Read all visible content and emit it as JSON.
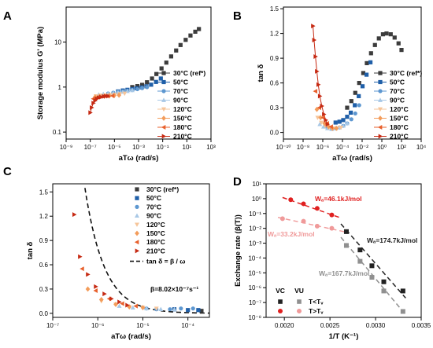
{
  "figure": {
    "legend_temps": [
      "30°C (ref*)",
      "50°C",
      "70°C",
      "90°C",
      "120°C",
      "150°C",
      "180°C",
      "210°C"
    ],
    "series_colors": [
      "#3c3c3c",
      "#1f5fa8",
      "#5d97d0",
      "#a8c8e6",
      "#f6c59a",
      "#f39c5a",
      "#e8602c",
      "#c62a13"
    ]
  },
  "chart_data": [
    {
      "panel": "A",
      "type": "scatter",
      "xlabel": "aTω (rad/s)",
      "ylabel": "Storage modulus G' (MPa)",
      "xscale": "log",
      "yscale": "log",
      "xlim": [
        1e-09,
        1000.0
      ],
      "ylim": [
        0.07,
        60
      ],
      "xticks": [
        "10⁻⁹",
        "10⁻⁷",
        "10⁻⁵",
        "10⁻³",
        "10⁻¹",
        "10¹",
        "10³"
      ],
      "yticks": [
        "0.1",
        "1",
        "10"
      ],
      "series": [
        {
          "name": "30°C (ref*)",
          "marker": "square",
          "x": [
            0.0003,
            0.0008,
            0.002,
            0.005,
            0.013,
            0.03,
            0.08,
            0.2,
            0.5,
            1.3,
            3,
            8,
            20,
            50,
            100
          ],
          "y": [
            1.0,
            1.05,
            1.12,
            1.28,
            1.55,
            1.95,
            2.6,
            3.5,
            4.8,
            6.5,
            8.6,
            11.2,
            14.0,
            17.0,
            19.5
          ]
        },
        {
          "name": "50°C",
          "marker": "square",
          "x": [
            2e-05,
            5e-05,
            0.00012,
            0.0003,
            0.0007,
            0.0018,
            0.0045,
            0.011,
            0.028,
            0.07
          ],
          "y": [
            0.8,
            0.84,
            0.87,
            0.9,
            0.94,
            0.98,
            1.04,
            1.13,
            1.3,
            1.55
          ]
        },
        {
          "name": "70°C",
          "marker": "circle",
          "x": [
            3e-06,
            8e-06,
            2e-05,
            5e-05,
            0.00012,
            0.0003,
            0.0008,
            0.002,
            0.005
          ],
          "y": [
            0.72,
            0.75,
            0.78,
            0.8,
            0.83,
            0.86,
            0.9,
            0.95,
            1.0
          ]
        },
        {
          "name": "90°C",
          "marker": "triangle-up",
          "x": [
            5e-07,
            1.2e-06,
            3e-06,
            8e-06,
            2e-05,
            5e-05,
            0.00012,
            0.0003
          ],
          "y": [
            0.68,
            0.7,
            0.72,
            0.74,
            0.76,
            0.78,
            0.81,
            0.85
          ]
        },
        {
          "name": "120°C",
          "marker": "triangle-down",
          "x": [
            3e-07,
            7e-07,
            1.8e-06,
            4.5e-06,
            1.1e-05,
            2.8e-05,
            7e-05
          ],
          "y": [
            0.63,
            0.65,
            0.66,
            0.67,
            0.68,
            0.7,
            0.72
          ]
        },
        {
          "name": "150°C",
          "marker": "diamond",
          "x": [
            2.5e-07,
            6e-07,
            1.5e-06,
            3.8e-06,
            9.5e-06,
            2.4e-05
          ],
          "y": [
            0.6,
            0.62,
            0.63,
            0.64,
            0.65,
            0.66
          ]
        },
        {
          "name": "180°C",
          "marker": "triangle-left",
          "x": [
            1.8e-07,
            4.5e-07,
            1.1e-06,
            2.8e-06,
            7e-06
          ],
          "y": [
            0.55,
            0.6,
            0.62,
            0.63,
            0.64
          ]
        },
        {
          "name": "210°C",
          "marker": "triangle-right",
          "x": [
            1e-07,
            1.3e-07,
            1.8e-07,
            2.5e-07,
            3.5e-07,
            5e-07,
            8e-07,
            1.3e-06,
            2e-06,
            3e-06
          ],
          "y": [
            0.27,
            0.35,
            0.44,
            0.5,
            0.55,
            0.58,
            0.6,
            0.62,
            0.63,
            0.63
          ]
        }
      ]
    },
    {
      "panel": "B",
      "type": "scatter",
      "xlabel": "aTω (rad/s)",
      "ylabel": "tan δ",
      "xscale": "log",
      "yscale": "linear",
      "xlim": [
        1e-10,
        10000.0
      ],
      "ylim": [
        -0.08,
        1.52
      ],
      "xticks": [
        "10⁻¹⁰",
        "10⁻⁸",
        "10⁻⁶",
        "10⁻⁴",
        "10⁻²",
        "10⁰",
        "10²",
        "10⁴"
      ],
      "yticks": [
        "0.0",
        "0.3",
        "0.6",
        "0.9",
        "1.2",
        "1.5"
      ],
      "series": [
        {
          "name": "30°C (ref*)",
          "marker": "square",
          "x": [
            0.0003,
            0.0008,
            0.002,
            0.005,
            0.013,
            0.03,
            0.08,
            0.2,
            0.5,
            1.3,
            3,
            8,
            20,
            50,
            100
          ],
          "y": [
            0.3,
            0.38,
            0.48,
            0.6,
            0.72,
            0.84,
            0.96,
            1.06,
            1.14,
            1.19,
            1.2,
            1.19,
            1.15,
            1.08,
            1.0
          ]
        },
        {
          "name": "50°C",
          "marker": "square",
          "x": [
            2e-05,
            5e-05,
            0.00012,
            0.0003,
            0.0007,
            0.0018,
            0.0045,
            0.011,
            0.028,
            0.07
          ],
          "y": [
            0.12,
            0.13,
            0.15,
            0.19,
            0.24,
            0.33,
            0.44,
            0.56,
            0.7,
            0.85
          ]
        },
        {
          "name": "70°C",
          "marker": "circle",
          "x": [
            3e-06,
            8e-06,
            2e-05,
            5e-05,
            0.00012,
            0.0003,
            0.0008,
            0.002,
            0.005
          ],
          "y": [
            0.06,
            0.05,
            0.05,
            0.06,
            0.08,
            0.11,
            0.16,
            0.23,
            0.33
          ]
        },
        {
          "name": "90°C",
          "marker": "triangle-up",
          "x": [
            5e-07,
            1.2e-06,
            3e-06,
            8e-06,
            2e-05,
            5e-05,
            0.00012,
            0.0003
          ],
          "y": [
            0.1,
            0.07,
            0.05,
            0.04,
            0.05,
            0.06,
            0.08,
            0.11
          ]
        },
        {
          "name": "120°C",
          "marker": "triangle-down",
          "x": [
            3e-07,
            7e-07,
            1.8e-06,
            4.5e-06,
            1.1e-05,
            2.8e-05,
            7e-05
          ],
          "y": [
            0.18,
            0.12,
            0.08,
            0.06,
            0.05,
            0.05,
            0.06
          ]
        },
        {
          "name": "150°C",
          "marker": "diamond",
          "x": [
            2.5e-07,
            6e-07,
            1.5e-06,
            3.8e-06,
            9.5e-06,
            2.4e-05
          ],
          "y": [
            0.28,
            0.18,
            0.11,
            0.07,
            0.05,
            0.05
          ]
        },
        {
          "name": "180°C",
          "marker": "triangle-left",
          "x": [
            1.8e-07,
            4.5e-07,
            1.1e-06,
            2.8e-06,
            7e-06
          ],
          "y": [
            0.5,
            0.3,
            0.18,
            0.11,
            0.07
          ]
        },
        {
          "name": "210°C",
          "marker": "triangle-right",
          "x": [
            1e-07,
            1.3e-07,
            1.8e-07,
            2.5e-07,
            3.5e-07,
            5e-07,
            8e-07,
            1.3e-06,
            2e-06,
            3e-06
          ],
          "y": [
            1.29,
            1.12,
            0.92,
            0.74,
            0.58,
            0.44,
            0.32,
            0.22,
            0.15,
            0.1
          ]
        }
      ]
    },
    {
      "panel": "C",
      "type": "scatter",
      "xlabel": "aTω (rad/s)",
      "ylabel": "tan δ",
      "xscale": "log",
      "yscale": "linear",
      "xlim": [
        1e-07,
        0.0003
      ],
      "ylim": [
        -0.05,
        1.6
      ],
      "xticks": [
        "10⁻⁷",
        "10⁻⁶",
        "10⁻⁵",
        "10⁻⁴"
      ],
      "yticks": [
        "0.0",
        "0.3",
        "0.6",
        "0.9",
        "1.2",
        "1.5"
      ],
      "fit": {
        "label": "tan δ = β / ω",
        "beta": 8.02e-07
      },
      "annotation": "β=8.02×10⁻⁷s⁻¹",
      "series": [
        {
          "name": "30°C (ref*)",
          "marker": "square",
          "x": [
            0.0002
          ],
          "y": [
            0.03
          ]
        },
        {
          "name": "50°C",
          "marker": "square",
          "x": [
            5e-05,
            0.0001,
            0.00017
          ],
          "y": [
            0.05,
            0.04,
            0.04
          ]
        },
        {
          "name": "70°C",
          "marker": "circle",
          "x": [
            1.2e-05,
            2e-05,
            4e-05,
            7e-05,
            0.00013
          ],
          "y": [
            0.06,
            0.05,
            0.05,
            0.06,
            0.06
          ]
        },
        {
          "name": "90°C",
          "marker": "triangle-up",
          "x": [
            3e-06,
            6e-06,
            1.2e-05,
            2.5e-05,
            5e-05
          ],
          "y": [
            0.09,
            0.07,
            0.06,
            0.05,
            0.05
          ]
        },
        {
          "name": "120°C",
          "marker": "triangle-down",
          "x": [
            1.2e-06,
            2.5e-06,
            5e-06,
            1e-05,
            2e-05
          ],
          "y": [
            0.15,
            0.11,
            0.08,
            0.07,
            0.06
          ]
        },
        {
          "name": "150°C",
          "marker": "diamond",
          "x": [
            6e-07,
            1.2e-06,
            2.5e-06,
            5e-06,
            1e-05
          ],
          "y": [
            0.3,
            0.17,
            0.11,
            0.08,
            0.07
          ]
        },
        {
          "name": "180°C",
          "marker": "triangle-left",
          "x": [
            4.5e-07,
            9e-07,
            1.8e-06,
            3.5e-06,
            7e-06
          ],
          "y": [
            0.55,
            0.28,
            0.18,
            0.12,
            0.09
          ]
        },
        {
          "name": "210°C",
          "marker": "triangle-right",
          "x": [
            3e-07,
            4e-07,
            6e-07,
            9e-07,
            1.4e-06,
            2e-06,
            3e-06,
            4.5e-06
          ],
          "y": [
            1.22,
            0.7,
            0.48,
            0.33,
            0.24,
            0.18,
            0.14,
            0.1
          ]
        }
      ]
    },
    {
      "panel": "D",
      "type": "scatter",
      "xlabel": "1/T (K⁻¹)",
      "ylabel": "Exchange rate (β(T))",
      "xscale": "linear",
      "yscale": "log",
      "xlim": [
        0.0018,
        0.0035
      ],
      "ylim": [
        1e-08,
        10
      ],
      "xticks": [
        "0.0020",
        "0.0025",
        "0.0030",
        "0.0035"
      ],
      "yticks": [
        "10⁻⁸",
        "10⁻⁷",
        "10⁻⁶",
        "10⁻⁵",
        "10⁻⁴",
        "10⁻³",
        "10⁻²",
        "10⁻¹",
        "10⁰",
        "10¹"
      ],
      "legend": {
        "col_headers": [
          "VC",
          "VU"
        ],
        "row_labels": [
          "T<Tᵥ",
          "T>Tᵥ"
        ]
      },
      "annotations": [
        "Wₐ=46.1kJ/mol",
        "Wₐ=33.2kJ/mol",
        "Wₐ=174.7kJ/mol",
        "Wₐ=167.7kJ/mol"
      ],
      "series": [
        {
          "name": "VC T>Tv",
          "marker": "circle",
          "color": "#e02020",
          "x": [
            0.00207,
            0.00221,
            0.00236,
            0.00252
          ],
          "y": [
            0.85,
            0.45,
            0.22,
            0.08
          ],
          "fit": {
            "x": [
              0.00198,
              0.00262
            ],
            "y": [
              1.2,
              0.05
            ]
          }
        },
        {
          "name": "VU T>Tv",
          "marker": "circle",
          "color": "#f09a9a",
          "x": [
            0.00198,
            0.00221,
            0.00236,
            0.00252
          ],
          "y": [
            0.045,
            0.03,
            0.014,
            0.01
          ],
          "fit": {
            "x": [
              0.00193,
              0.00268
            ],
            "y": [
              0.055,
              0.0055
            ]
          }
        },
        {
          "name": "VC T<Tv",
          "marker": "square",
          "color": "#222222",
          "x": [
            0.00268,
            0.00283,
            0.00296,
            0.00309,
            0.0033
          ],
          "y": [
            0.006,
            0.00035,
            3e-05,
            2.5e-06,
            6e-07
          ],
          "fit": {
            "x": [
              0.00262,
              0.00333
            ],
            "y": [
              0.02,
              2e-07
            ]
          }
        },
        {
          "name": "VU T<Tv",
          "marker": "square",
          "color": "#909090",
          "x": [
            0.00268,
            0.00283,
            0.00296,
            0.00309,
            0.0033
          ],
          "y": [
            0.0007,
            6e-05,
            5e-06,
            6e-07,
            2.5e-08
          ],
          "fit": {
            "x": [
              0.00262,
              0.00333
            ],
            "y": [
              0.0025,
              1.5e-08
            ]
          }
        }
      ]
    }
  ]
}
